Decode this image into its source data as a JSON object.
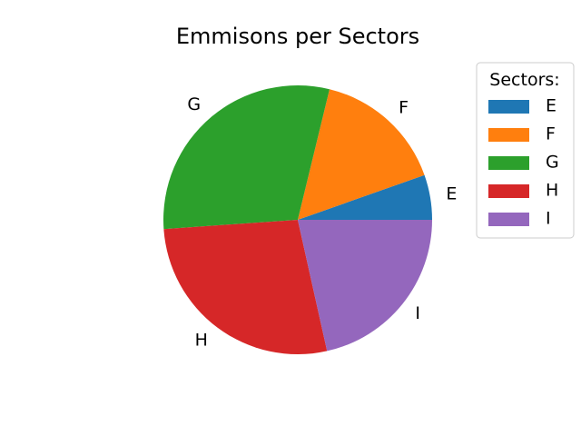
{
  "chart_data": {
    "type": "pie",
    "title": "Emmisons per Sectors",
    "labels": [
      "E",
      "F",
      "G",
      "H",
      "I"
    ],
    "values": [
      5.4,
      15.8,
      29.9,
      27.4,
      21.5
    ],
    "colors": [
      "#1f77b4",
      "#ff7f0e",
      "#2ca02c",
      "#d62728",
      "#9467bd"
    ],
    "start_angle_deg": 0,
    "direction": "counterclockwise",
    "legend": {
      "title": "Sectors:",
      "placement": "right",
      "entries": [
        "E",
        "F",
        "G",
        "H",
        "I"
      ]
    }
  }
}
